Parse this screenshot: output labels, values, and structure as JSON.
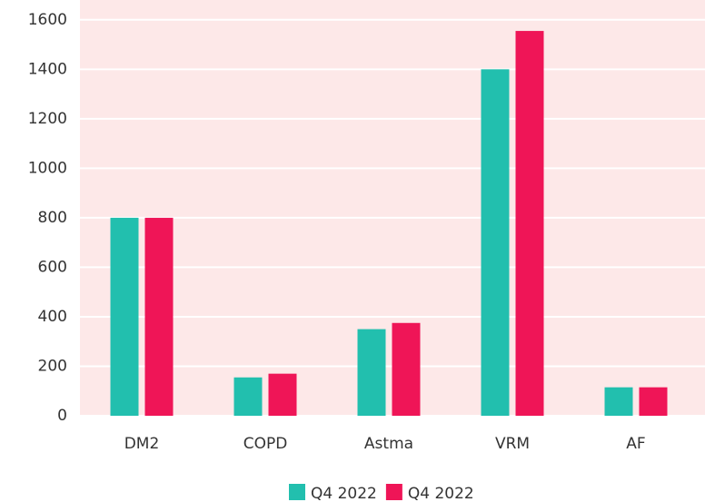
{
  "chart_data": {
    "type": "bar",
    "categories": [
      "DM2",
      "COPD",
      "Astma",
      "VRM",
      "AF"
    ],
    "series": [
      {
        "name": "Q4 2022",
        "color": "#22bfae",
        "values": [
          800,
          155,
          350,
          1400,
          115
        ]
      },
      {
        "name": "Q4 2022",
        "color": "#ef1557",
        "values": [
          800,
          170,
          375,
          1555,
          115
        ]
      }
    ],
    "ylim": [
      0,
      1680
    ],
    "yticks": [
      0,
      200,
      400,
      600,
      800,
      1000,
      1200,
      1400,
      1600
    ],
    "grid": true,
    "legend": "bottom"
  }
}
